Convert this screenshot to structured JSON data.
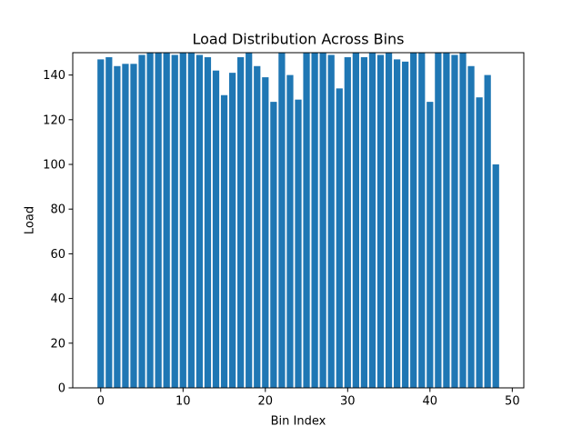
{
  "chart_data": {
    "type": "bar",
    "title": "Load Distribution Across Bins",
    "xlabel": "Bin Index",
    "ylabel": "Load",
    "x": [
      0,
      1,
      2,
      3,
      4,
      5,
      6,
      7,
      8,
      9,
      10,
      11,
      12,
      13,
      14,
      15,
      16,
      17,
      18,
      19,
      20,
      21,
      22,
      23,
      24,
      25,
      26,
      27,
      28,
      29,
      30,
      31,
      32,
      33,
      34,
      35,
      36,
      37,
      38,
      39,
      40,
      41,
      42,
      43,
      44,
      45,
      46,
      47,
      48
    ],
    "values": [
      147,
      148,
      144,
      145,
      145,
      149,
      150,
      150,
      150,
      149,
      150,
      150,
      149,
      148,
      142,
      131,
      141,
      148,
      150,
      144,
      139,
      128,
      150,
      140,
      129,
      150,
      150,
      150,
      149,
      134,
      148,
      150,
      148,
      150,
      149,
      150,
      147,
      146,
      150,
      150,
      128,
      150,
      150,
      149,
      150,
      144,
      130,
      140,
      100
    ],
    "xlim": [
      -3.4,
      51.4
    ],
    "ylim": [
      0,
      150
    ],
    "xticks": [
      0,
      10,
      20,
      30,
      40,
      50
    ],
    "yticks": [
      0,
      20,
      40,
      60,
      80,
      100,
      120,
      140
    ],
    "bar_color": "#1f77b4",
    "grid": false,
    "legend": "none"
  }
}
